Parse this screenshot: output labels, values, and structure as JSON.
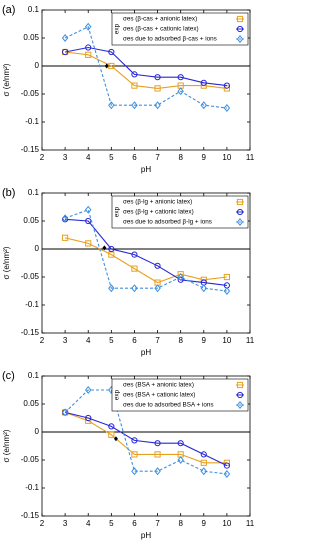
{
  "chart_data": [
    {
      "type": "line",
      "panel_label": "(a)",
      "xlabel": "pH",
      "ylabel": "σ (e/nm²)",
      "legend_title": "exp",
      "xlim": [
        2,
        11
      ],
      "xticks": [
        2,
        3,
        4,
        5,
        6,
        7,
        8,
        9,
        10,
        11
      ],
      "ylim": [
        -0.15,
        0.1
      ],
      "yticks": [
        -0.15,
        -0.1,
        -0.05,
        0,
        0.05,
        0.1
      ],
      "zero_line": true,
      "x": [
        3,
        4,
        5,
        6,
        7,
        8,
        9,
        10
      ],
      "series": [
        {
          "name": "σes (β-cas + anionic latex)",
          "color": "#e8a020",
          "marker": "square",
          "dashed": false,
          "values": [
            0.025,
            0.02,
            0.0,
            -0.035,
            -0.04,
            -0.035,
            -0.035,
            -0.04
          ]
        },
        {
          "name": "σes (β-cas + cationic latex)",
          "color": "#2727d8",
          "marker": "circle",
          "dashed": false,
          "values": [
            0.025,
            0.033,
            0.025,
            -0.015,
            -0.02,
            -0.02,
            -0.03,
            -0.035
          ]
        },
        {
          "name": "σes due to adsorbed β-cas + ions",
          "color": "#3f8fe0",
          "marker": "diamond",
          "dashed": true,
          "values": [
            0.05,
            0.07,
            -0.07,
            -0.07,
            -0.07,
            -0.045,
            -0.07,
            -0.075
          ]
        }
      ],
      "crossing_point": {
        "x": 4.8,
        "y": 0
      }
    },
    {
      "type": "line",
      "panel_label": "(b)",
      "xlabel": "pH",
      "ylabel": "σ (e/nm²)",
      "legend_title": "exp",
      "xlim": [
        2,
        11
      ],
      "xticks": [
        2,
        3,
        4,
        5,
        6,
        7,
        8,
        9,
        10,
        11
      ],
      "ylim": [
        -0.15,
        0.1
      ],
      "yticks": [
        -0.15,
        -0.1,
        -0.05,
        0,
        0.05,
        0.1
      ],
      "zero_line": true,
      "x": [
        3,
        4,
        5,
        6,
        7,
        8,
        9,
        10
      ],
      "series": [
        {
          "name": "σes (β-lg + anionic latex)",
          "color": "#e8a020",
          "marker": "square",
          "dashed": false,
          "values": [
            0.02,
            0.01,
            -0.01,
            -0.035,
            -0.06,
            -0.045,
            -0.055,
            -0.05
          ]
        },
        {
          "name": "σes (β-lg + cationic latex)",
          "color": "#2727d8",
          "marker": "circle",
          "dashed": false,
          "values": [
            0.053,
            0.05,
            0.0,
            -0.01,
            -0.03,
            -0.055,
            -0.06,
            -0.065
          ]
        },
        {
          "name": "σes due to adsorbed β-lg + ions",
          "color": "#3f8fe0",
          "marker": "diamond",
          "dashed": true,
          "values": [
            0.055,
            0.07,
            -0.07,
            -0.07,
            -0.07,
            -0.05,
            -0.07,
            -0.075
          ]
        }
      ],
      "crossing_point": {
        "x": 4.7,
        "y": 0.002
      }
    },
    {
      "type": "line",
      "panel_label": "(c)",
      "xlabel": "pH",
      "ylabel": "σ (e/nm²)",
      "legend_title": "exp",
      "xlim": [
        2,
        11
      ],
      "xticks": [
        2,
        3,
        4,
        5,
        6,
        7,
        8,
        9,
        10,
        11
      ],
      "ylim": [
        -0.15,
        0.1
      ],
      "yticks": [
        -0.15,
        -0.1,
        -0.05,
        0,
        0.05,
        0.1
      ],
      "zero_line": true,
      "x": [
        3,
        4,
        5,
        6,
        7,
        8,
        9,
        10
      ],
      "series": [
        {
          "name": "σes (BSA + anionic latex)",
          "color": "#e8a020",
          "marker": "square",
          "dashed": false,
          "values": [
            0.035,
            0.02,
            -0.005,
            -0.04,
            -0.04,
            -0.04,
            -0.055,
            -0.055
          ]
        },
        {
          "name": "σes (BSA + cationic latex)",
          "color": "#2727d8",
          "marker": "circle",
          "dashed": false,
          "values": [
            0.035,
            0.025,
            0.01,
            -0.015,
            -0.02,
            -0.02,
            -0.04,
            -0.06
          ]
        },
        {
          "name": "σes due to adsorbed BSA + ions",
          "color": "#3f8fe0",
          "marker": "diamond",
          "dashed": true,
          "values": [
            0.035,
            0.075,
            0.075,
            -0.07,
            -0.07,
            -0.05,
            -0.07,
            -0.075
          ]
        }
      ],
      "crossing_point": {
        "x": 5.2,
        "y": -0.012
      }
    }
  ]
}
